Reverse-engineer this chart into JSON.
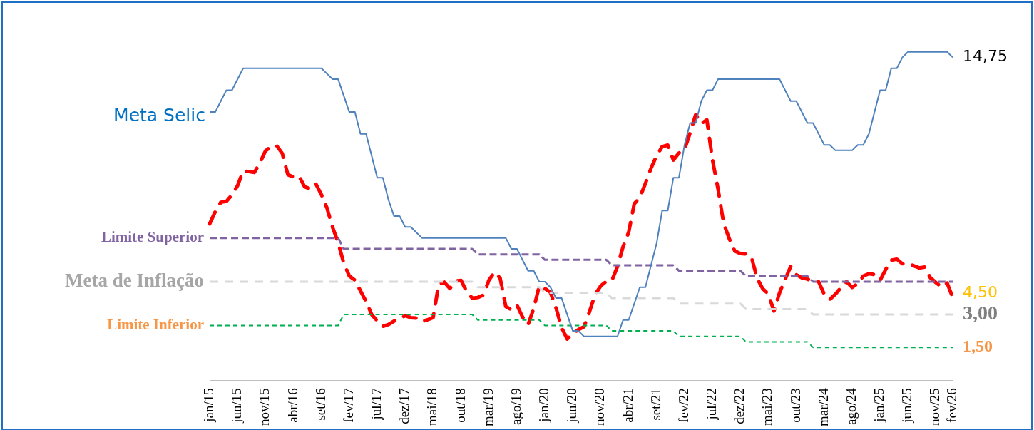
{
  "chart_data": {
    "type": "line",
    "categories": [
      "jan/15",
      null,
      null,
      null,
      null,
      "jun/15",
      null,
      null,
      null,
      null,
      "nov/15",
      null,
      null,
      null,
      null,
      "abr/16",
      null,
      null,
      null,
      null,
      "set/16",
      null,
      null,
      null,
      null,
      "fev/17",
      null,
      null,
      null,
      null,
      "jul/17",
      null,
      null,
      null,
      null,
      "dez/17",
      null,
      null,
      null,
      null,
      "mai/18",
      null,
      null,
      null,
      null,
      "out/18",
      null,
      null,
      null,
      null,
      "mar/19",
      null,
      null,
      null,
      null,
      "ago/19",
      null,
      null,
      null,
      null,
      "jan/20",
      null,
      null,
      null,
      null,
      "jun/20",
      null,
      null,
      null,
      null,
      "nov/20",
      null,
      null,
      null,
      null,
      "abr/21",
      null,
      null,
      null,
      null,
      "set/21",
      null,
      null,
      null,
      null,
      "fev/22",
      null,
      null,
      null,
      null,
      "jul/22",
      null,
      null,
      null,
      null,
      "dez/22",
      null,
      null,
      null,
      null,
      "mai/23",
      null,
      null,
      null,
      null,
      "out/23",
      null,
      null,
      null,
      null,
      "mar/24",
      null,
      null,
      null,
      null,
      "ago/24",
      null,
      null,
      null,
      null,
      "jan/25",
      null,
      null,
      null,
      null,
      "jun/25",
      null,
      null,
      null,
      null,
      "nov/25",
      null,
      null,
      "fev/26"
    ],
    "series": [
      {
        "name": "Meta Selic",
        "color": "#4f81bd",
        "line_style": "solid",
        "values": [
          12.25,
          12.25,
          12.75,
          13.25,
          13.25,
          13.75,
          14.25,
          14.25,
          14.25,
          14.25,
          14.25,
          14.25,
          14.25,
          14.25,
          14.25,
          14.25,
          14.25,
          14.25,
          14.25,
          14.25,
          14.25,
          14,
          13.75,
          13.75,
          13,
          12.25,
          12.25,
          11.25,
          11.25,
          10.25,
          9.25,
          9.25,
          8.25,
          7.5,
          7.5,
          7,
          7,
          6.75,
          6.5,
          6.5,
          6.5,
          6.5,
          6.5,
          6.5,
          6.5,
          6.5,
          6.5,
          6.5,
          6.5,
          6.5,
          6.5,
          6.5,
          6.5,
          6.5,
          6,
          6,
          5.5,
          5,
          5,
          4.5,
          4.5,
          4.25,
          3.75,
          3.75,
          3,
          2.25,
          2.25,
          2,
          2,
          2,
          2,
          2,
          2,
          2,
          2.75,
          2.75,
          3.5,
          4.25,
          4.25,
          5.25,
          6.25,
          7.75,
          7.75,
          9.25,
          9.25,
          10.75,
          11.75,
          11.75,
          12.75,
          13.25,
          13.25,
          13.75,
          13.75,
          13.75,
          13.75,
          13.75,
          13.75,
          13.75,
          13.75,
          13.75,
          13.75,
          13.75,
          13.75,
          13.25,
          12.75,
          12.75,
          12.25,
          11.75,
          11.75,
          11.25,
          10.75,
          10.75,
          10.5,
          10.5,
          10.5,
          10.5,
          10.75,
          10.75,
          11.25,
          12.25,
          13.25,
          13.25,
          14.25,
          14.25,
          14.75,
          15,
          15,
          15,
          15,
          15,
          15,
          15,
          15,
          14.75
        ],
        "value_labels": [
          null,
          null,
          null,
          null,
          null,
          null,
          null,
          null,
          null,
          null,
          null,
          null,
          null,
          null,
          null,
          null,
          null,
          null,
          null,
          null,
          null,
          null,
          null,
          null,
          null,
          null,
          null,
          null,
          null,
          null,
          null,
          null,
          null,
          null,
          null,
          null,
          null,
          null,
          null,
          null,
          null,
          null,
          null,
          null,
          null,
          null,
          null,
          null,
          null,
          null,
          null,
          null,
          null,
          null,
          null,
          null,
          null,
          null,
          null,
          null,
          null,
          null,
          null,
          null,
          null,
          null,
          null,
          null,
          null,
          null,
          null,
          null,
          null,
          null,
          null,
          null,
          null,
          null,
          null,
          null,
          null,
          null,
          null,
          null,
          null,
          null,
          null,
          null,
          null,
          null,
          null,
          null,
          null,
          null,
          null,
          null,
          null,
          null,
          null,
          null,
          null,
          null,
          null,
          null,
          null,
          null,
          null,
          null,
          null,
          null,
          null,
          null,
          null,
          null,
          null,
          null,
          null,
          null,
          null,
          null,
          null,
          null,
          null,
          null,
          null,
          null,
          null,
          null,
          null,
          null,
          null,
          null,
          null,
          "14,75"
        ]
      },
      {
        "color": "#ff0000",
        "line_style": "dashed",
        "values": [
          7.14,
          7.7,
          8.13,
          8.17,
          8.47,
          8.89,
          9.56,
          9.53,
          9.49,
          9.93,
          10.48,
          10.67,
          10.71,
          10.36,
          9.39,
          9.28,
          9.32,
          8.84,
          8.74,
          8.97,
          8.48,
          7.87,
          6.99,
          6.29,
          5.35,
          4.76,
          4.57,
          4.08,
          3.6,
          3,
          2.71,
          2.46,
          2.54,
          2.7,
          2.8,
          2.95,
          2.86,
          2.84,
          2.68,
          2.76,
          2.86,
          4.39,
          4.48,
          4.19,
          4.53,
          4.56,
          4.05,
          3.75,
          3.78,
          3.89,
          4.58,
          4.94,
          4.66,
          3.37,
          3.22,
          3.43,
          2.89,
          2.54,
          3.27,
          4.31,
          4.19,
          4.01,
          3.3,
          2.4,
          1.88,
          2.13,
          2.31,
          2.44,
          3.14,
          3.92,
          4.31,
          4.52,
          4.56,
          5.2,
          6.1,
          6.76,
          8.06,
          8.35,
          8.99,
          9.68,
          10.25,
          10.67,
          10.74,
          10.06,
          10.38,
          10.54,
          11.3,
          12.13,
          11.73,
          11.89,
          10.07,
          8.73,
          7.17,
          6.47,
          5.9,
          5.79,
          5.77,
          5.6,
          4.65,
          4.18,
          3.94,
          3.16,
          3.99,
          4.61,
          5.19,
          4.82,
          4.68,
          4.62,
          4.51,
          4.5,
          3.93,
          3.69,
          3.93,
          4.23,
          4.5,
          4.24,
          4.42,
          4.76,
          4.87,
          4.83,
          4.56,
          5.06,
          5.48,
          5.53,
          5.32,
          5.35,
          5.23,
          5.13,
          5.17,
          4.68,
          4.46,
          4.26,
          4.44,
          3.78
        ]
      },
      {
        "name": "Limite Superior",
        "color": "#8064a2",
        "line_style": "dashed",
        "values": [
          6.5,
          6.5,
          6.5,
          6.5,
          6.5,
          6.5,
          6.5,
          6.5,
          6.5,
          6.5,
          6.5,
          6.5,
          6.5,
          6.5,
          6.5,
          6.5,
          6.5,
          6.5,
          6.5,
          6.5,
          6.5,
          6.5,
          6.5,
          6.5,
          6,
          6,
          6,
          6,
          6,
          6,
          6,
          6,
          6,
          6,
          6,
          6,
          6,
          6,
          6,
          6,
          6,
          6,
          6,
          6,
          6,
          6,
          6,
          6,
          5.75,
          5.75,
          5.75,
          5.75,
          5.75,
          5.75,
          5.75,
          5.75,
          5.75,
          5.75,
          5.75,
          5.75,
          5.5,
          5.5,
          5.5,
          5.5,
          5.5,
          5.5,
          5.5,
          5.5,
          5.5,
          5.5,
          5.5,
          5.5,
          5.25,
          5.25,
          5.25,
          5.25,
          5.25,
          5.25,
          5.25,
          5.25,
          5.25,
          5.25,
          5.25,
          5.25,
          5,
          5,
          5,
          5,
          5,
          5,
          5,
          5,
          5,
          5,
          5,
          5,
          4.75,
          4.75,
          4.75,
          4.75,
          4.75,
          4.75,
          4.75,
          4.75,
          4.75,
          4.75,
          4.75,
          4.75,
          4.5,
          4.5,
          4.5,
          4.5,
          4.5,
          4.5,
          4.5,
          4.5,
          4.5,
          4.5,
          4.5,
          4.5,
          4.5,
          4.5,
          4.5,
          4.5,
          4.5,
          4.5,
          4.5,
          4.5,
          4.5,
          4.5,
          4.5,
          4.5,
          4.5,
          4.5
        ],
        "value_labels": [
          null,
          null,
          null,
          null,
          null,
          null,
          null,
          null,
          null,
          null,
          null,
          null,
          null,
          null,
          null,
          null,
          null,
          null,
          null,
          null,
          null,
          null,
          null,
          null,
          null,
          null,
          null,
          null,
          null,
          null,
          null,
          null,
          null,
          null,
          null,
          null,
          null,
          null,
          null,
          null,
          null,
          null,
          null,
          null,
          null,
          null,
          null,
          null,
          null,
          null,
          null,
          null,
          null,
          null,
          null,
          null,
          null,
          null,
          null,
          null,
          null,
          null,
          null,
          null,
          null,
          null,
          null,
          null,
          null,
          null,
          null,
          null,
          null,
          null,
          null,
          null,
          null,
          null,
          null,
          null,
          null,
          null,
          null,
          null,
          null,
          null,
          null,
          null,
          null,
          null,
          null,
          null,
          null,
          null,
          null,
          null,
          null,
          null,
          null,
          null,
          null,
          null,
          null,
          null,
          null,
          null,
          null,
          null,
          null,
          null,
          null,
          null,
          null,
          null,
          null,
          null,
          null,
          null,
          null,
          null,
          null,
          null,
          null,
          null,
          null,
          null,
          null,
          null,
          null,
          null,
          null,
          null,
          null,
          "4,50"
        ]
      },
      {
        "name": "Meta de Inflação",
        "color": "#d9d9d9",
        "line_style": "dashed",
        "values": [
          4.5,
          4.5,
          4.5,
          4.5,
          4.5,
          4.5,
          4.5,
          4.5,
          4.5,
          4.5,
          4.5,
          4.5,
          4.5,
          4.5,
          4.5,
          4.5,
          4.5,
          4.5,
          4.5,
          4.5,
          4.5,
          4.5,
          4.5,
          4.5,
          4.5,
          4.5,
          4.5,
          4.5,
          4.5,
          4.5,
          4.5,
          4.5,
          4.5,
          4.5,
          4.5,
          4.5,
          4.5,
          4.5,
          4.5,
          4.5,
          4.5,
          4.5,
          4.5,
          4.5,
          4.5,
          4.5,
          4.5,
          4.5,
          4.25,
          4.25,
          4.25,
          4.25,
          4.25,
          4.25,
          4.25,
          4.25,
          4.25,
          4.25,
          4.25,
          4.25,
          4,
          4,
          4,
          4,
          4,
          4,
          4,
          4,
          4,
          4,
          4,
          4,
          3.75,
          3.75,
          3.75,
          3.75,
          3.75,
          3.75,
          3.75,
          3.75,
          3.75,
          3.75,
          3.75,
          3.75,
          3.5,
          3.5,
          3.5,
          3.5,
          3.5,
          3.5,
          3.5,
          3.5,
          3.5,
          3.5,
          3.5,
          3.5,
          3.25,
          3.25,
          3.25,
          3.25,
          3.25,
          3.25,
          3.25,
          3.25,
          3.25,
          3.25,
          3.25,
          3.25,
          3,
          3,
          3,
          3,
          3,
          3,
          3,
          3,
          3,
          3,
          3,
          3,
          3,
          3,
          3,
          3,
          3,
          3,
          3,
          3,
          3,
          3,
          3,
          3,
          3,
          3
        ],
        "value_labels": [
          null,
          null,
          null,
          null,
          null,
          null,
          null,
          null,
          null,
          null,
          null,
          null,
          null,
          null,
          null,
          null,
          null,
          null,
          null,
          null,
          null,
          null,
          null,
          null,
          null,
          null,
          null,
          null,
          null,
          null,
          null,
          null,
          null,
          null,
          null,
          null,
          null,
          null,
          null,
          null,
          null,
          null,
          null,
          null,
          null,
          null,
          null,
          null,
          null,
          null,
          null,
          null,
          null,
          null,
          null,
          null,
          null,
          null,
          null,
          null,
          null,
          null,
          null,
          null,
          null,
          null,
          null,
          null,
          null,
          null,
          null,
          null,
          null,
          null,
          null,
          null,
          null,
          null,
          null,
          null,
          null,
          null,
          null,
          null,
          null,
          null,
          null,
          null,
          null,
          null,
          null,
          null,
          null,
          null,
          null,
          null,
          null,
          null,
          null,
          null,
          null,
          null,
          null,
          null,
          null,
          null,
          null,
          null,
          null,
          null,
          null,
          null,
          null,
          null,
          null,
          null,
          null,
          null,
          null,
          null,
          null,
          null,
          null,
          null,
          null,
          null,
          null,
          null,
          null,
          null,
          null,
          null,
          null,
          "3,00"
        ]
      },
      {
        "name": "Limite Inferior",
        "color": "#00b050",
        "line_style": "dashed",
        "values": [
          2.5,
          2.5,
          2.5,
          2.5,
          2.5,
          2.5,
          2.5,
          2.5,
          2.5,
          2.5,
          2.5,
          2.5,
          2.5,
          2.5,
          2.5,
          2.5,
          2.5,
          2.5,
          2.5,
          2.5,
          2.5,
          2.5,
          2.5,
          2.5,
          3,
          3,
          3,
          3,
          3,
          3,
          3,
          3,
          3,
          3,
          3,
          3,
          3,
          3,
          3,
          3,
          3,
          3,
          3,
          3,
          3,
          3,
          3,
          3,
          2.75,
          2.75,
          2.75,
          2.75,
          2.75,
          2.75,
          2.75,
          2.75,
          2.75,
          2.75,
          2.75,
          2.75,
          2.5,
          2.5,
          2.5,
          2.5,
          2.5,
          2.5,
          2.5,
          2.5,
          2.5,
          2.5,
          2.5,
          2.5,
          2.25,
          2.25,
          2.25,
          2.25,
          2.25,
          2.25,
          2.25,
          2.25,
          2.25,
          2.25,
          2.25,
          2.25,
          2,
          2,
          2,
          2,
          2,
          2,
          2,
          2,
          2,
          2,
          2,
          2,
          1.75,
          1.75,
          1.75,
          1.75,
          1.75,
          1.75,
          1.75,
          1.75,
          1.75,
          1.75,
          1.75,
          1.75,
          1.5,
          1.5,
          1.5,
          1.5,
          1.5,
          1.5,
          1.5,
          1.5,
          1.5,
          1.5,
          1.5,
          1.5,
          1.5,
          1.5,
          1.5,
          1.5,
          1.5,
          1.5,
          1.5,
          1.5,
          1.5,
          1.5,
          1.5,
          1.5,
          1.5,
          1.5
        ],
        "value_labels": [
          null,
          null,
          null,
          null,
          null,
          null,
          null,
          null,
          null,
          null,
          null,
          null,
          null,
          null,
          null,
          null,
          null,
          null,
          null,
          null,
          null,
          null,
          null,
          null,
          null,
          null,
          null,
          null,
          null,
          null,
          null,
          null,
          null,
          null,
          null,
          null,
          null,
          null,
          null,
          null,
          null,
          null,
          null,
          null,
          null,
          null,
          null,
          null,
          null,
          null,
          null,
          null,
          null,
          null,
          null,
          null,
          null,
          null,
          null,
          null,
          null,
          null,
          null,
          null,
          null,
          null,
          null,
          null,
          null,
          null,
          null,
          null,
          null,
          null,
          null,
          null,
          null,
          null,
          null,
          null,
          null,
          null,
          null,
          null,
          null,
          null,
          null,
          null,
          null,
          null,
          null,
          null,
          null,
          null,
          null,
          null,
          null,
          null,
          null,
          null,
          null,
          null,
          null,
          null,
          null,
          null,
          null,
          null,
          null,
          null,
          null,
          null,
          null,
          null,
          null,
          null,
          null,
          null,
          null,
          null,
          null,
          null,
          null,
          null,
          null,
          null,
          null,
          null,
          null,
          null,
          null,
          null,
          null,
          "1,50"
        ]
      }
    ],
    "grid": false,
    "legend": false,
    "marker": "none"
  }
}
